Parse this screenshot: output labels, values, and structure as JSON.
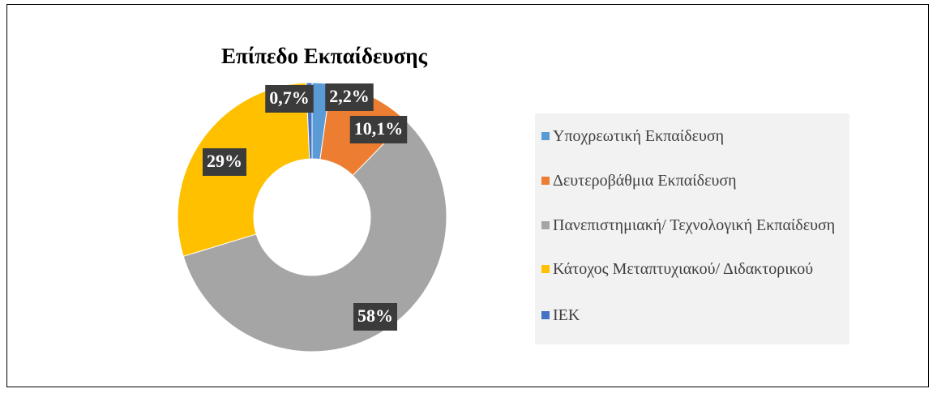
{
  "chart_data": {
    "type": "donut",
    "title": "Επίπεδο Εκπαίδευσης",
    "categories": [
      "Υποχρεωτική Εκπαίδευση",
      "Δευτεροβάθμια Εκπαίδευση",
      "Πανεπιστημιακή/ Τεχνολογική Εκπαίδευση",
      "Κάτοχος Μεταπτυχιακού/ Διδακτορικού",
      "ΙΕΚ"
    ],
    "values": [
      2.2,
      10.1,
      58,
      29,
      0.7
    ],
    "value_labels": [
      "2,2%",
      "10,1%",
      "58%",
      "29%",
      "0,7%"
    ],
    "colors": [
      "#5b9bd5",
      "#ed7d31",
      "#a5a5a5",
      "#ffc000",
      "#4472c4"
    ],
    "legend": "right"
  }
}
